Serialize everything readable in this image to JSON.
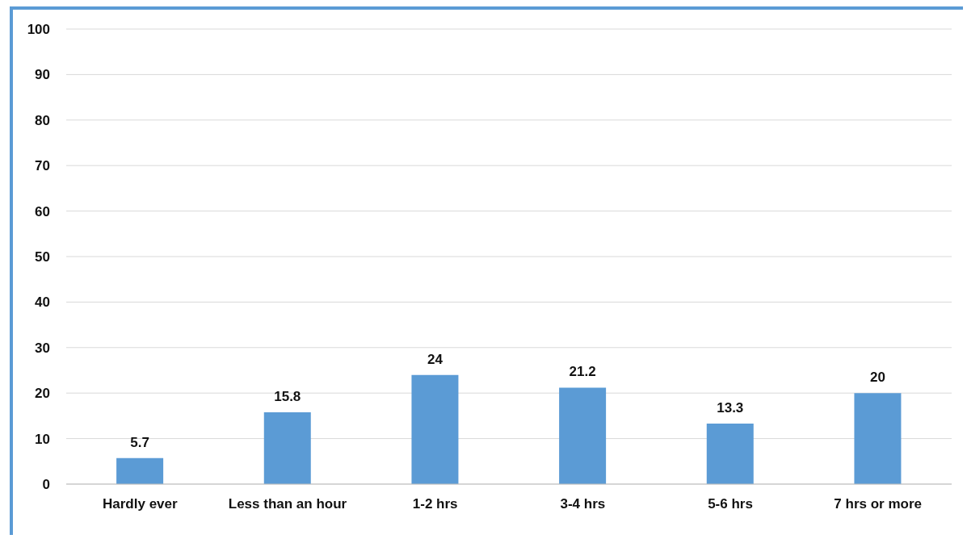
{
  "chart_data": {
    "type": "bar",
    "categories": [
      "Hardly ever",
      "Less than an hour",
      "1-2 hrs",
      "3-4 hrs",
      "5-6 hrs",
      "7 hrs or more"
    ],
    "values": [
      5.7,
      15.8,
      24,
      21.2,
      13.3,
      20
    ],
    "color": "#5b9bd5",
    "ylim": [
      0,
      100
    ],
    "yticks": [
      0,
      10,
      20,
      30,
      40,
      50,
      60,
      70,
      80,
      90,
      100
    ],
    "grid": "y",
    "data_labels": true
  }
}
